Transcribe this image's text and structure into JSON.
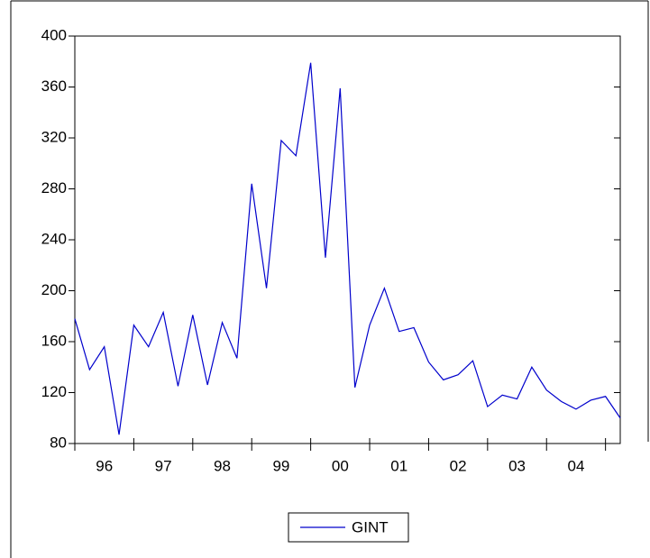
{
  "chart_data": {
    "type": "line",
    "categories": [
      null,
      null,
      "96",
      null,
      null,
      null,
      "97",
      null,
      null,
      null,
      "98",
      null,
      null,
      null,
      "99",
      null,
      null,
      null,
      "00",
      null,
      null,
      null,
      "01",
      null,
      null,
      null,
      "02",
      null,
      null,
      null,
      "03",
      null,
      null,
      null,
      "04",
      null,
      null,
      null
    ],
    "series": [
      {
        "name": "GINT",
        "color": "#0000cc",
        "values": [
          178,
          138,
          156,
          87,
          173,
          156,
          183,
          125,
          181,
          126,
          175,
          147,
          284,
          202,
          318,
          306,
          379,
          226,
          359,
          124,
          173,
          202,
          168,
          171,
          144,
          130,
          134,
          145,
          109,
          118,
          115,
          140,
          122,
          113,
          107,
          114,
          117,
          100
        ]
      }
    ],
    "ylim": [
      80,
      400
    ],
    "yticks": [
      80,
      120,
      160,
      200,
      240,
      280,
      320,
      360,
      400
    ]
  }
}
